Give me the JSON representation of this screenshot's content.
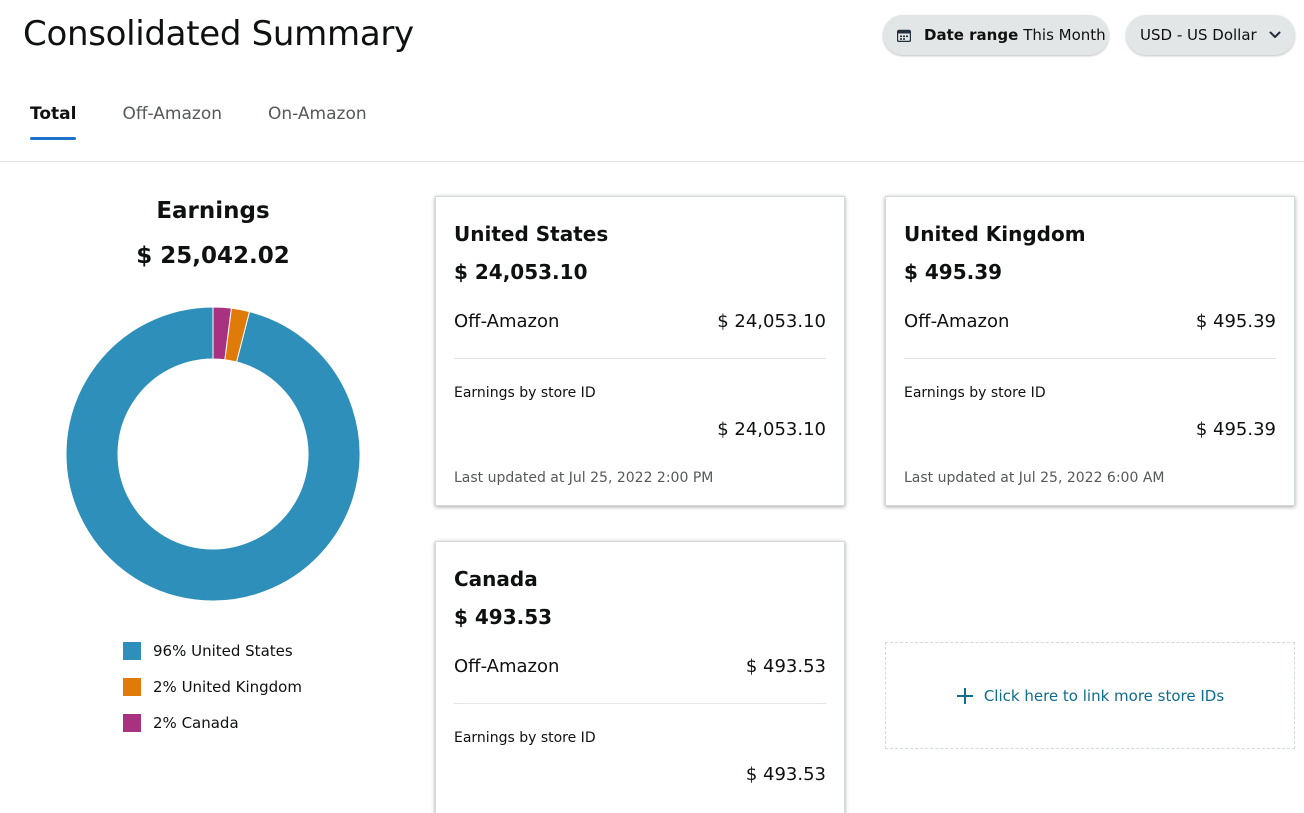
{
  "header": {
    "title": "Consolidated Summary",
    "date_range": {
      "label": "Date range",
      "value": "This Month",
      "icon": "calendar-icon"
    },
    "currency": {
      "value": "USD - US Dollar",
      "icon": "chevron-down-icon"
    }
  },
  "tabs": [
    {
      "label": "Total",
      "active": true
    },
    {
      "label": "Off-Amazon",
      "active": false
    },
    {
      "label": "On-Amazon",
      "active": false
    }
  ],
  "earnings": {
    "title": "Earnings",
    "total": "$ 25,042.02"
  },
  "chart_data": {
    "type": "pie",
    "categories": [
      "United States",
      "United Kingdom",
      "Canada"
    ],
    "values": [
      96,
      2,
      2
    ],
    "legend_labels": [
      "96% United States",
      "2% United Kingdom",
      "2% Canada"
    ],
    "colors": [
      "#2e8fba",
      "#e07b0a",
      "#a8327f"
    ],
    "legend": "bottom"
  },
  "cards": {
    "us": {
      "name": "United States",
      "total": "$ 24,053.10",
      "row_label": "Off-Amazon",
      "row_value": "$ 24,053.10",
      "store_label": "Earnings by store ID",
      "store_value": "$ 24,053.10",
      "updated": "Last updated at Jul 25, 2022 2:00 PM"
    },
    "uk": {
      "name": "United Kingdom",
      "total": "$ 495.39",
      "row_label": "Off-Amazon",
      "row_value": "$ 495.39",
      "store_label": "Earnings by store ID",
      "store_value": "$ 495.39",
      "updated": "Last updated at Jul 25, 2022 6:00 AM"
    },
    "ca": {
      "name": "Canada",
      "total": "$ 493.53",
      "row_label": "Off-Amazon",
      "row_value": "$ 493.53",
      "store_label": "Earnings by store ID",
      "store_value": "$ 493.53"
    }
  },
  "link_more": {
    "label": "Click here to link more store IDs",
    "icon": "plus-icon"
  },
  "colors": {
    "accent": "#1a73c8",
    "link": "#0f6c8c",
    "pill_bg": "#e3e6e6"
  }
}
